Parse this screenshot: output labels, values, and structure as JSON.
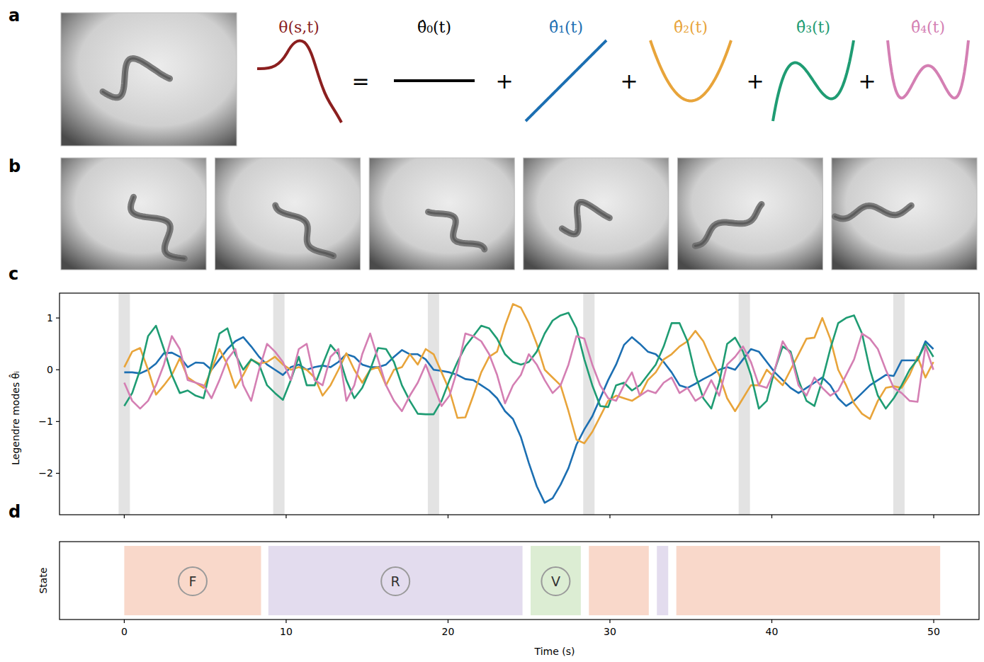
{
  "figure": {
    "panel_labels": [
      "a",
      "b",
      "c",
      "d"
    ],
    "panel_a": {
      "curve_label": "θ(s,t)",
      "curve_color": "#8b1f1f",
      "equals": "=",
      "plus": "+",
      "constant_mode": {
        "label": "θ̂₀(t)",
        "color": "#000000"
      }
    }
  },
  "chart_data": [
    {
      "type": "line",
      "y_label": "Legendre modes θ̂ᵢ",
      "x": [
        0,
        0.49,
        0.98,
        1.47,
        1.96,
        2.45,
        2.94,
        3.43,
        3.92,
        4.41,
        4.9,
        5.39,
        5.88,
        6.37,
        6.86,
        7.35,
        7.84,
        8.33,
        8.82,
        9.31,
        9.8,
        10.29,
        10.78,
        11.27,
        11.76,
        12.25,
        12.74,
        13.23,
        13.72,
        14.21,
        14.7,
        15.19,
        15.68,
        16.17,
        16.66,
        17.15,
        17.64,
        18.13,
        18.62,
        19.11,
        19.6,
        20.09,
        20.58,
        21.07,
        21.56,
        22.05,
        22.54,
        23.03,
        23.52,
        24.01,
        24.5,
        24.99,
        25.48,
        25.97,
        26.46,
        26.95,
        27.44,
        27.93,
        28.42,
        28.91,
        29.4,
        29.89,
        30.38,
        30.87,
        31.36,
        31.85,
        32.34,
        32.83,
        33.32,
        33.81,
        34.3,
        34.79,
        35.28,
        35.77,
        36.26,
        36.75,
        37.24,
        37.73,
        38.22,
        38.71,
        39.2,
        39.69,
        40.18,
        40.67,
        41.16,
        41.65,
        42.14,
        42.63,
        43.12,
        43.61,
        44.1,
        44.59,
        45.08,
        45.57,
        46.06,
        46.55,
        47.04,
        47.53,
        48.02,
        48.51,
        49.0,
        49.49,
        49.98
      ],
      "series": [
        {
          "name": "θ̂₁(t)",
          "color": "#1c6fb2",
          "values": [
            -0.05,
            -0.05,
            -0.07,
            0,
            0.12,
            0.32,
            0.33,
            0.25,
            0.05,
            0.14,
            0.13,
            0,
            0.2,
            0.4,
            0.55,
            0.63,
            0.45,
            0.25,
            0.1,
            0,
            -0.1,
            0.05,
            0.1,
            0,
            0.05,
            0.08,
            0.05,
            0.15,
            0.3,
            0.25,
            0.1,
            0.05,
            0.05,
            0.1,
            0.25,
            0.38,
            0.3,
            0.3,
            0.2,
            0,
            -0.02,
            -0.05,
            -0.1,
            -0.18,
            -0.2,
            -0.3,
            -0.4,
            -0.55,
            -0.8,
            -0.95,
            -1.3,
            -1.8,
            -2.25,
            -2.57,
            -2.48,
            -2.22,
            -1.9,
            -1.45,
            -1.15,
            -0.9,
            -0.55,
            -0.2,
            0.1,
            0.48,
            0.63,
            0.5,
            0.35,
            0.3,
            0.15,
            -0.05,
            -0.3,
            -0.35,
            -0.27,
            -0.18,
            -0.1,
            0,
            0.05,
            0,
            0.2,
            0.4,
            0.35,
            0.15,
            -0.05,
            -0.2,
            -0.35,
            -0.45,
            -0.35,
            -0.25,
            -0.15,
            -0.3,
            -0.55,
            -0.7,
            -0.6,
            -0.45,
            -0.3,
            -0.2,
            -0.1,
            -0.12,
            0.18,
            0.18,
            0.18,
            0.55,
            0.4
          ]
        },
        {
          "name": "θ̂₂(t)",
          "color": "#e8a43a",
          "values": [
            0.05,
            0.35,
            0.42,
            0,
            -0.48,
            -0.3,
            -0.1,
            0.22,
            -0.15,
            -0.25,
            -0.35,
            0,
            0.4,
            0.1,
            -0.35,
            -0.1,
            0.2,
            0.12,
            0.15,
            0.25,
            0.1,
            0,
            0.05,
            0,
            -0.15,
            -0.5,
            -0.3,
            0,
            0.32,
            0,
            -0.25,
            0,
            0.05,
            -0.3,
            0,
            0.05,
            0.3,
            0.1,
            0.4,
            0.3,
            -0.05,
            -0.4,
            -0.93,
            -0.92,
            -0.5,
            -0.05,
            0.25,
            0.35,
            0.85,
            1.27,
            1.2,
            0.9,
            0.5,
            0,
            -0.15,
            -0.3,
            -0.8,
            -1.35,
            -1.42,
            -1.2,
            -0.9,
            -0.6,
            -0.5,
            -0.55,
            -0.6,
            -0.5,
            -0.2,
            -0.05,
            0.2,
            0.3,
            0.45,
            0.55,
            0.75,
            0.55,
            0.2,
            -0.1,
            -0.55,
            -0.8,
            -0.55,
            -0.3,
            -0.3,
            0,
            -0.15,
            -0.3,
            0,
            0.3,
            0.6,
            0.62,
            1,
            0.6,
            0,
            -0.3,
            -0.65,
            -0.85,
            -0.95,
            -0.6,
            -0.35,
            -0.32,
            -0.35,
            -0.1,
            0.25,
            -0.15,
            0.15
          ]
        },
        {
          "name": "θ̂₃(t)",
          "color": "#1f9c73",
          "values": [
            -0.7,
            -0.45,
            0,
            0.65,
            0.85,
            0.4,
            -0.1,
            -0.45,
            -0.4,
            -0.5,
            -0.55,
            0.1,
            0.7,
            0.8,
            0.3,
            0,
            0.2,
            0.1,
            -0.3,
            -0.45,
            -0.58,
            -0.2,
            0.25,
            -0.3,
            -0.3,
            0.1,
            0.48,
            0.3,
            -0.2,
            -0.55,
            -0.35,
            0,
            0.42,
            0.4,
            0.15,
            -0.3,
            -0.6,
            -0.85,
            -0.86,
            -0.86,
            -0.6,
            -0.2,
            0.15,
            0.45,
            0.65,
            0.85,
            0.8,
            0.6,
            0.3,
            0.15,
            0.1,
            0.15,
            0.35,
            0.7,
            0.95,
            1.05,
            1.1,
            0.8,
            0.2,
            -0.3,
            -0.7,
            -0.72,
            -0.3,
            -0.25,
            -0.4,
            -0.3,
            -0.1,
            0.1,
            0.45,
            0.9,
            0.9,
            0.55,
            -0.1,
            -0.55,
            -0.75,
            -0.25,
            0.5,
            0.62,
            0.35,
            -0.1,
            -0.75,
            -0.6,
            0,
            0.45,
            0.35,
            -0.2,
            -0.6,
            -0.7,
            -0.2,
            0.4,
            0.9,
            1,
            1.05,
            0.7,
            0,
            -0.5,
            -0.75,
            -0.55,
            -0.3,
            0,
            0.2,
            0.5,
            0.25
          ]
        },
        {
          "name": "θ̂₄(t)",
          "color": "#d47fb3",
          "values": [
            -0.25,
            -0.6,
            -0.75,
            -0.6,
            -0.3,
            0.1,
            0.65,
            0.4,
            -0.2,
            -0.25,
            -0.3,
            -0.55,
            -0.2,
            0.2,
            0.4,
            -0.3,
            -0.6,
            0,
            0.5,
            0.35,
            0.15,
            -0.2,
            0.4,
            0.5,
            -0.2,
            -0.3,
            0.25,
            0.4,
            -0.6,
            -0.3,
            0.3,
            0.7,
            0.2,
            -0.3,
            -0.6,
            -0.8,
            -0.5,
            -0.25,
            0.1,
            -0.3,
            -0.7,
            -0.5,
            0,
            0.7,
            0.65,
            0.55,
            0.3,
            -0.1,
            -0.65,
            -0.3,
            -0.1,
            0.3,
            0.1,
            -0.2,
            -0.45,
            -0.3,
            0.1,
            0.65,
            0.6,
            0.1,
            -0.3,
            -0.55,
            -0.6,
            -0.3,
            -0.05,
            -0.5,
            -0.4,
            -0.45,
            -0.25,
            -0.15,
            -0.45,
            -0.35,
            -0.6,
            -0.5,
            -0.2,
            -0.5,
            0.1,
            0.25,
            0.45,
            0.15,
            -0.3,
            -0.35,
            0,
            0.55,
            0.3,
            -0.3,
            -0.5,
            -0.15,
            -0.35,
            -0.5,
            -0.4,
            -0.1,
            0.2,
            0.7,
            0.6,
            0.4,
            0,
            -0.35,
            -0.45,
            -0.6,
            -0.62,
            0.45,
            0
          ]
        }
      ],
      "xlim": [
        -4,
        52.8
      ],
      "ylim": [
        -2.8,
        1.48
      ],
      "xticks": [
        0,
        10,
        20,
        30,
        40,
        50
      ],
      "yticks": [
        {
          "value": -2,
          "label": "−2"
        },
        {
          "value": -1,
          "label": "−1"
        },
        0,
        1
      ],
      "tick_labels": "y",
      "highlights": [
        [
          -0.35,
          0.35
        ],
        [
          9.2,
          9.9
        ],
        [
          18.75,
          19.45
        ],
        [
          28.35,
          29.05
        ],
        [
          37.95,
          38.65
        ],
        [
          47.5,
          48.2
        ]
      ],
      "highlight_color": "#e3e3e3"
    },
    {
      "type": "timeline",
      "y_label": "State",
      "x_label": "Time (s)",
      "xlim": [
        -4,
        52.8
      ],
      "xticks": [
        0,
        10,
        20,
        30,
        40,
        50
      ],
      "tick_labels": "x",
      "segments": [
        {
          "start": 0,
          "end": 8.45,
          "color": "#f9d8ca",
          "label": "F"
        },
        {
          "start": 8.9,
          "end": 24.6,
          "color": "#e3dcee",
          "label": "R"
        },
        {
          "start": 25.1,
          "end": 28.2,
          "color": "#dcedd3",
          "label": "V"
        },
        {
          "start": 28.7,
          "end": 32.4,
          "color": "#f9d8ca"
        },
        {
          "start": 32.9,
          "end": 33.6,
          "color": "#e3dcee"
        },
        {
          "start": 34.1,
          "end": 50.4,
          "color": "#f9d8ca"
        }
      ]
    }
  ]
}
